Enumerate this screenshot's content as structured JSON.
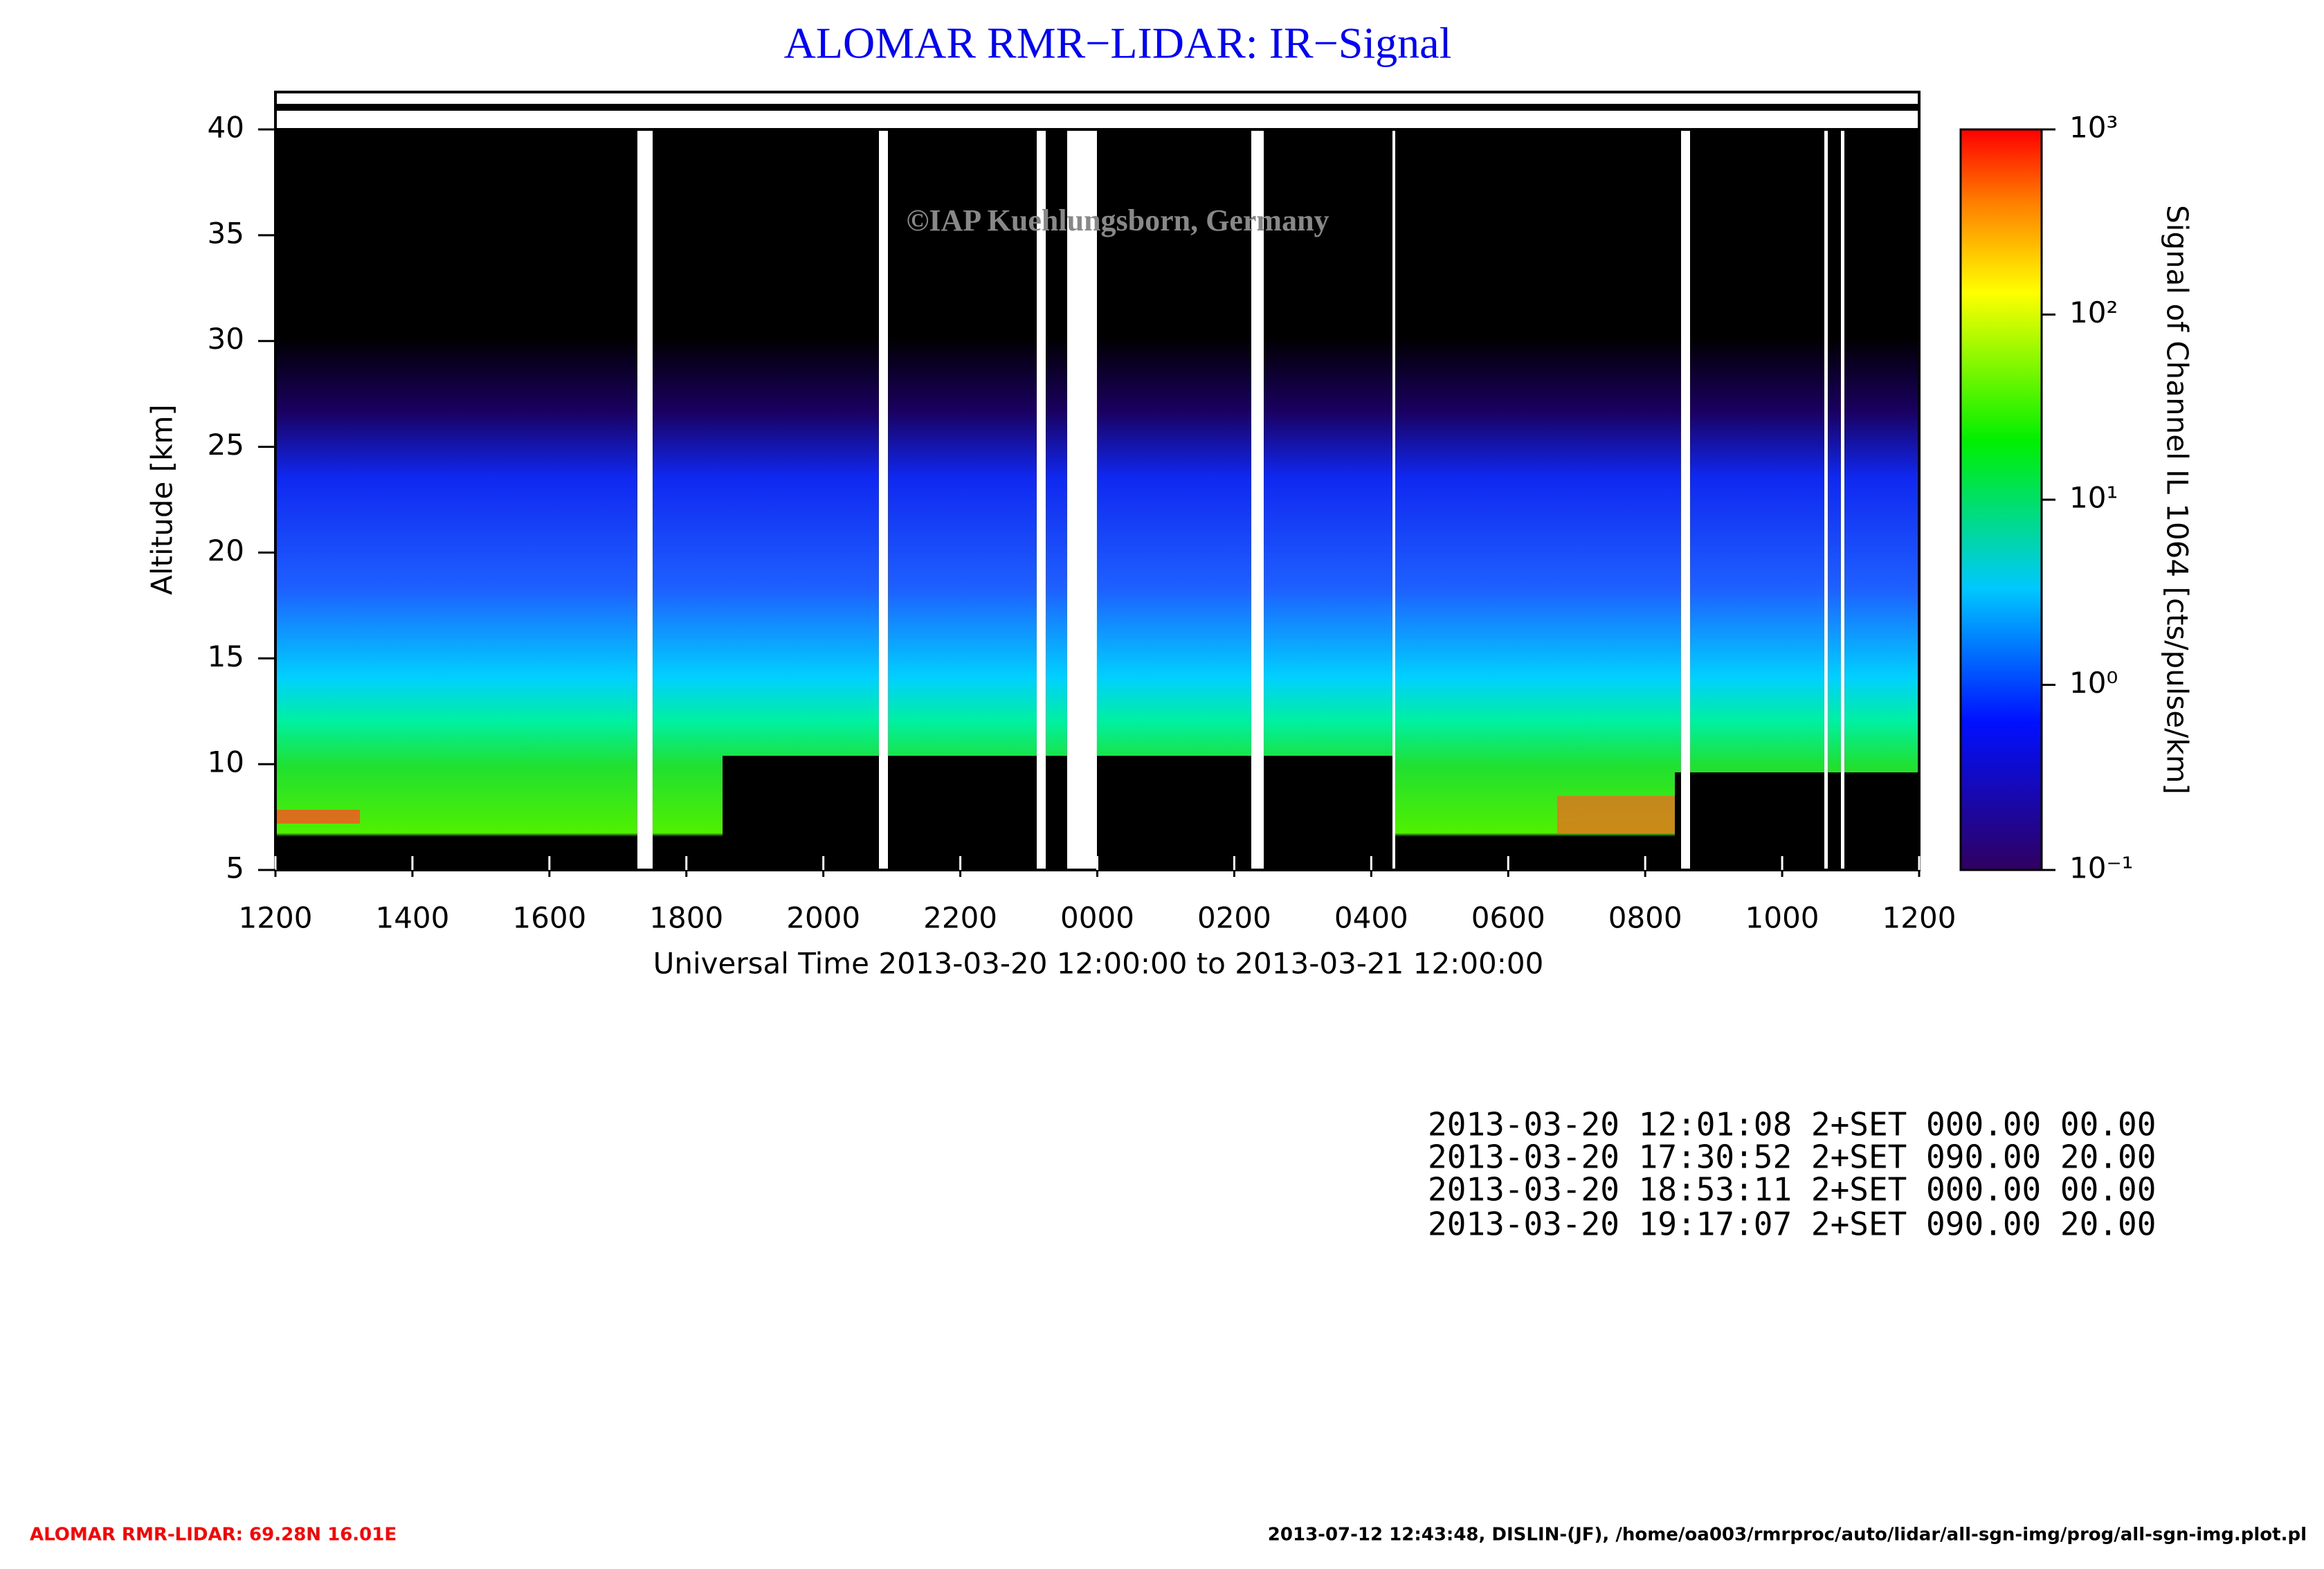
{
  "chart_data": {
    "type": "heatmap",
    "title": "ALOMAR RMR−LIDAR: IR−Signal",
    "watermark": "©IAP Kuehlungsborn, Germany",
    "x_label": "Universal Time 2013-03-20 12:00:00 to 2013-03-21 12:00:00",
    "y_label": "Altitude [km]",
    "colorbar_label": "Signal of Channel IL 1064 [cts/pulse/km]",
    "xlim": [
      0,
      24
    ],
    "xticks": [
      {
        "value": 0,
        "label": "1200"
      },
      {
        "value": 2,
        "label": "1400"
      },
      {
        "value": 4,
        "label": "1600"
      },
      {
        "value": 6,
        "label": "1800"
      },
      {
        "value": 8,
        "label": "2000"
      },
      {
        "value": 10,
        "label": "2200"
      },
      {
        "value": 12,
        "label": "0000"
      },
      {
        "value": 14,
        "label": "0200"
      },
      {
        "value": 16,
        "label": "0400"
      },
      {
        "value": 18,
        "label": "0600"
      },
      {
        "value": 20,
        "label": "0800"
      },
      {
        "value": 22,
        "label": "1000"
      },
      {
        "value": 24,
        "label": "1200"
      }
    ],
    "ylim": [
      5,
      40
    ],
    "yticks": [
      5,
      10,
      15,
      20,
      25,
      30,
      35,
      40
    ],
    "clim": [
      0.1,
      1000
    ],
    "log_scale_colorbar": true,
    "cticks": [
      {
        "value": 0.1,
        "label": "10⁻¹"
      },
      {
        "value": 1,
        "label": "10⁰"
      },
      {
        "value": 10,
        "label": "10¹"
      },
      {
        "value": 100,
        "label": "10²"
      },
      {
        "value": 1000,
        "label": "10³"
      }
    ]
  },
  "settings_log": [
    "2013-03-20 12:01:08 2+SET 000.00 00.00",
    "2013-03-20 17:30:52 2+SET 090.00 20.00",
    "2013-03-20 18:53:11 2+SET 000.00 00.00",
    "2013-03-20 19:17:07 2+SET 090.00 20.00"
  ],
  "footer": {
    "left": "ALOMAR RMR-LIDAR: 69.28N 16.01E",
    "right": "2013-07-12 12:43:48, DISLIN-(JF), /home/oa003/rmrproc/auto/lidar/all-sgn-img/prog/all-sgn-img.plot.pl"
  }
}
